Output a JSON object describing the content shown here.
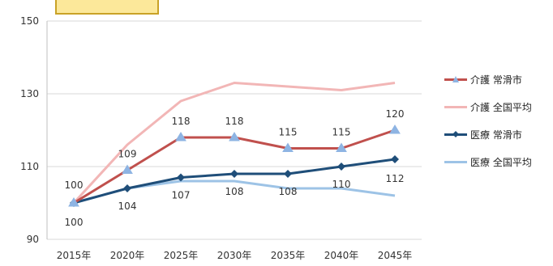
{
  "title_box": "",
  "corner_text": "",
  "chart_data": {
    "type": "line",
    "categories": [
      "2015年",
      "2020年",
      "2025年",
      "2030年",
      "2035年",
      "2040年",
      "2045年"
    ],
    "ylim": [
      90,
      150
    ],
    "yticks": [
      90,
      110,
      130,
      150
    ],
    "grid": true,
    "legend_position": "right",
    "series": [
      {
        "name": "介護 常滑市",
        "values": [
          100,
          109,
          118,
          118,
          115,
          115,
          120
        ],
        "color": "#c0504d",
        "marker": "triangle",
        "labels": true
      },
      {
        "name": "介護 全国平均",
        "values": [
          100,
          116,
          128,
          133,
          132,
          131,
          133
        ],
        "color": "#f2b6b6",
        "marker": "none",
        "labels": false
      },
      {
        "name": "医療 常滑市",
        "values": [
          100,
          104,
          107,
          108,
          108,
          110,
          112
        ],
        "color": "#1f4e79",
        "marker": "diamond",
        "labels": true
      },
      {
        "name": "医療 全国平均",
        "values": [
          100,
          104,
          106,
          106,
          104,
          104,
          102
        ],
        "color": "#9dc3e6",
        "marker": "none",
        "labels": false
      }
    ]
  }
}
